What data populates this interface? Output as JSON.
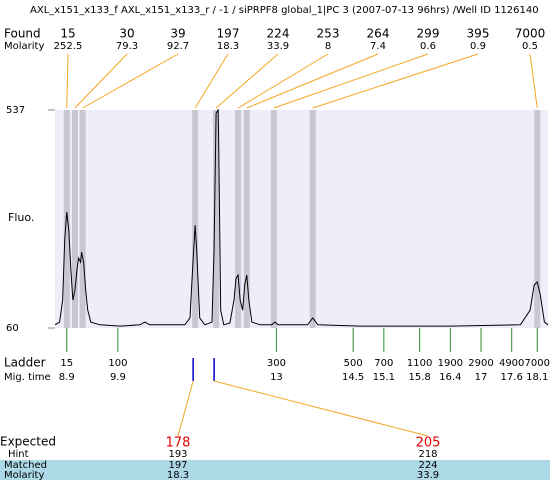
{
  "chart_data": {
    "type": "line",
    "title": "AXL_x151_x133_f  AXL_x151_x133_r / -1 / siPRPF8 global_1|PC 3 (2007-07-13 96hrs) /Well ID 1126140",
    "ylabel": "Fluo.",
    "ylim": [
      60,
      537
    ],
    "yticks": [
      60,
      537
    ],
    "xlim": [
      8.67,
      18.31
    ],
    "series": [
      {
        "color": "#000000",
        "x": [
          8.67,
          8.76,
          8.82,
          8.86,
          8.9,
          8.94,
          8.98,
          9.02,
          9.06,
          9.1,
          9.13,
          9.17,
          9.19,
          9.23,
          9.27,
          9.31,
          9.37,
          9.55,
          9.94,
          10.33,
          10.43,
          10.52,
          11.21,
          11.31,
          11.37,
          11.41,
          11.44,
          11.5,
          11.6,
          11.74,
          11.78,
          11.82,
          11.86,
          11.87,
          11.91,
          11.97,
          12.09,
          12.17,
          12.21,
          12.25,
          12.29,
          12.34,
          12.38,
          12.42,
          12.46,
          12.52,
          12.68,
          12.91,
          12.97,
          13.03,
          13.61,
          13.71,
          13.81,
          14.63,
          16.4,
          17.77,
          17.96,
          18.04,
          18.1,
          18.16,
          18.24,
          18.31
        ],
        "values": [
          67,
          73,
          121,
          253,
          314,
          274,
          187,
          121,
          143,
          187,
          213,
          204,
          226,
          204,
          143,
          99,
          73,
          67,
          64,
          67,
          73,
          67,
          67,
          82,
          209,
          285,
          231,
          82,
          67,
          73,
          231,
          530,
          537,
          471,
          99,
          67,
          71,
          121,
          169,
          176,
          121,
          99,
          154,
          176,
          121,
          73,
          67,
          67,
          73,
          67,
          67,
          82,
          67,
          64,
          64,
          67,
          99,
          154,
          161,
          132,
          73,
          67
        ]
      }
    ],
    "found": {
      "label": "Found",
      "molarity_label": "Molarity",
      "sizes": [
        15,
        30,
        39,
        197,
        224,
        253,
        264,
        299,
        395,
        7000
      ],
      "molarity": [
        252.5,
        79.3,
        92.7,
        18.3,
        33.9,
        8,
        7.4,
        0.6,
        0.9,
        0.5
      ],
      "mig_time": [
        8.9,
        9.06,
        9.21,
        11.41,
        11.82,
        12.25,
        12.42,
        12.95,
        13.71,
        18.1
      ]
    },
    "ladder": {
      "label": "Ladder",
      "mig_time_label": "Mig. time",
      "sizes": [
        15,
        100,
        300,
        500,
        700,
        1100,
        1900,
        2900,
        4900,
        7000
      ],
      "mig_time": [
        8.9,
        9.9,
        13,
        14.5,
        15.1,
        15.8,
        16.4,
        17,
        17.6,
        18.1
      ]
    },
    "expected": {
      "label": "Expected",
      "hint_label": "Hint",
      "matched_label": "Matched",
      "molarity_label": "Molarity",
      "sizes": [
        178,
        205
      ],
      "hint": [
        193,
        218
      ],
      "matched": [
        197,
        224
      ],
      "molarity": [
        18.3,
        33.9
      ]
    }
  }
}
